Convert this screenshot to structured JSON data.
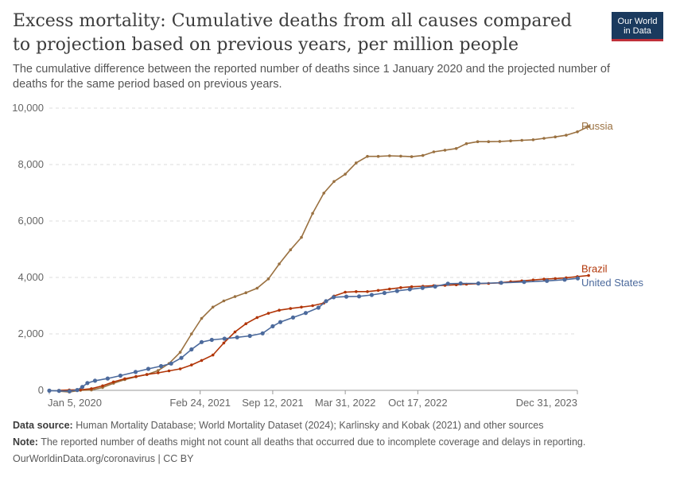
{
  "header": {
    "title": "Excess mortality: Cumulative deaths from all causes compared to projection based on previous years, per million people",
    "subtitle": "The cumulative difference between the reported number of deaths since 1 January 2020 and the projected number of deaths for the same period based on previous years.",
    "logo_line1": "Our World",
    "logo_line2": "in Data"
  },
  "footer": {
    "source_label": "Data source:",
    "source_text": " Human Mortality Database; World Mortality Dataset (2024); Karlinsky and Kobak (2021) and other sources",
    "note_label": "Note:",
    "note_text": " The reported number of deaths might not count all deaths that occurred due to incomplete coverage and delays in reporting.",
    "credit": "OurWorldinData.org/coronavirus | CC BY"
  },
  "colors": {
    "Russia": "#9a7141",
    "Brazil": "#b13507",
    "United States": "#4c6a9c",
    "grid": "#dddddd"
  },
  "chart_data": {
    "type": "line",
    "title": "Excess mortality: Cumulative deaths from all causes compared to projection based on previous years, per million people",
    "ylim": [
      0,
      10000
    ],
    "yticks": [
      0,
      2000,
      4000,
      6000,
      8000,
      10000
    ],
    "ytick_labels": [
      "0",
      "2,000",
      "4,000",
      "6,000",
      "8,000",
      "10,000"
    ],
    "xlim": [
      "2020-01-05",
      "2023-12-31"
    ],
    "xticks": [
      "2020-01-05",
      "2021-02-24",
      "2021-09-12",
      "2022-03-31",
      "2022-10-17",
      "2023-12-31"
    ],
    "xtick_labels": [
      "Jan 5, 2020",
      "Feb 24, 2021",
      "Sep 12, 2021",
      "Mar 31, 2022",
      "Oct 17, 2022",
      "Dec 31, 2023"
    ],
    "grid": true,
    "legend": "end-of-line labels",
    "series": [
      {
        "name": "Russia",
        "points": [
          [
            "2020-01-31",
            -30
          ],
          [
            "2020-02-29",
            -60
          ],
          [
            "2020-03-31",
            0
          ],
          [
            "2020-04-30",
            10
          ],
          [
            "2020-05-31",
            100
          ],
          [
            "2020-06-30",
            250
          ],
          [
            "2020-07-31",
            380
          ],
          [
            "2020-08-31",
            480
          ],
          [
            "2020-09-30",
            560
          ],
          [
            "2020-10-31",
            700
          ],
          [
            "2020-11-30",
            950
          ],
          [
            "2020-12-31",
            1350
          ],
          [
            "2021-01-31",
            2000
          ],
          [
            "2021-02-28",
            2550
          ],
          [
            "2021-03-31",
            2950
          ],
          [
            "2021-04-30",
            3170
          ],
          [
            "2021-05-31",
            3320
          ],
          [
            "2021-06-30",
            3460
          ],
          [
            "2021-07-31",
            3620
          ],
          [
            "2021-08-31",
            3950
          ],
          [
            "2021-09-30",
            4480
          ],
          [
            "2021-10-31",
            4980
          ],
          [
            "2021-11-30",
            5420
          ],
          [
            "2021-12-31",
            6270
          ],
          [
            "2022-01-31",
            6990
          ],
          [
            "2022-02-28",
            7400
          ],
          [
            "2022-03-31",
            7660
          ],
          [
            "2022-04-30",
            8060
          ],
          [
            "2022-05-31",
            8290
          ],
          [
            "2022-06-30",
            8290
          ],
          [
            "2022-07-31",
            8310
          ],
          [
            "2022-08-31",
            8300
          ],
          [
            "2022-09-30",
            8280
          ],
          [
            "2022-10-31",
            8320
          ],
          [
            "2022-11-30",
            8450
          ],
          [
            "2022-12-31",
            8510
          ],
          [
            "2023-01-31",
            8570
          ],
          [
            "2023-02-28",
            8740
          ],
          [
            "2023-03-31",
            8810
          ],
          [
            "2023-04-30",
            8810
          ],
          [
            "2023-05-31",
            8820
          ],
          [
            "2023-06-30",
            8840
          ],
          [
            "2023-07-31",
            8860
          ],
          [
            "2023-08-31",
            8880
          ],
          [
            "2023-09-30",
            8930
          ],
          [
            "2023-10-31",
            8980
          ],
          [
            "2023-11-30",
            9040
          ],
          [
            "2023-12-31",
            9160
          ],
          [
            "2024-01-31",
            9350
          ]
        ]
      },
      {
        "name": "Brazil",
        "points": [
          [
            "2020-01-31",
            0
          ],
          [
            "2020-02-29",
            10
          ],
          [
            "2020-03-31",
            20
          ],
          [
            "2020-04-30",
            60
          ],
          [
            "2020-05-31",
            160
          ],
          [
            "2020-06-30",
            300
          ],
          [
            "2020-07-31",
            410
          ],
          [
            "2020-08-31",
            490
          ],
          [
            "2020-09-30",
            560
          ],
          [
            "2020-10-31",
            620
          ],
          [
            "2020-11-30",
            690
          ],
          [
            "2020-12-31",
            760
          ],
          [
            "2021-01-31",
            900
          ],
          [
            "2021-02-28",
            1060
          ],
          [
            "2021-03-31",
            1250
          ],
          [
            "2021-04-30",
            1680
          ],
          [
            "2021-05-31",
            2070
          ],
          [
            "2021-06-30",
            2360
          ],
          [
            "2021-07-31",
            2580
          ],
          [
            "2021-08-31",
            2730
          ],
          [
            "2021-09-30",
            2840
          ],
          [
            "2021-10-31",
            2900
          ],
          [
            "2021-11-30",
            2950
          ],
          [
            "2021-12-31",
            3000
          ],
          [
            "2022-01-31",
            3090
          ],
          [
            "2022-02-28",
            3340
          ],
          [
            "2022-03-31",
            3480
          ],
          [
            "2022-04-30",
            3500
          ],
          [
            "2022-05-31",
            3500
          ],
          [
            "2022-06-30",
            3540
          ],
          [
            "2022-07-31",
            3590
          ],
          [
            "2022-08-31",
            3640
          ],
          [
            "2022-09-30",
            3670
          ],
          [
            "2022-10-31",
            3690
          ],
          [
            "2022-11-30",
            3710
          ],
          [
            "2022-12-31",
            3720
          ],
          [
            "2023-01-31",
            3740
          ],
          [
            "2023-02-28",
            3760
          ],
          [
            "2023-03-31",
            3780
          ],
          [
            "2023-04-30",
            3790
          ],
          [
            "2023-05-31",
            3810
          ],
          [
            "2023-06-30",
            3850
          ],
          [
            "2023-07-31",
            3880
          ],
          [
            "2023-08-31",
            3910
          ],
          [
            "2023-09-30",
            3940
          ],
          [
            "2023-10-31",
            3960
          ],
          [
            "2023-11-30",
            3990
          ],
          [
            "2023-12-31",
            4030
          ],
          [
            "2024-01-31",
            4070
          ]
        ]
      },
      {
        "name": "United States",
        "points": [
          [
            "2020-01-05",
            -10
          ],
          [
            "2020-02-01",
            -20
          ],
          [
            "2020-03-01",
            -30
          ],
          [
            "2020-03-22",
            10
          ],
          [
            "2020-04-05",
            120
          ],
          [
            "2020-04-19",
            260
          ],
          [
            "2020-05-10",
            340
          ],
          [
            "2020-06-14",
            420
          ],
          [
            "2020-07-19",
            520
          ],
          [
            "2020-08-30",
            650
          ],
          [
            "2020-10-04",
            760
          ],
          [
            "2020-11-08",
            860
          ],
          [
            "2020-12-06",
            950
          ],
          [
            "2021-01-03",
            1150
          ],
          [
            "2021-01-31",
            1450
          ],
          [
            "2021-02-28",
            1710
          ],
          [
            "2021-03-28",
            1790
          ],
          [
            "2021-05-02",
            1830
          ],
          [
            "2021-06-06",
            1880
          ],
          [
            "2021-07-11",
            1930
          ],
          [
            "2021-08-15",
            2020
          ],
          [
            "2021-09-12",
            2270
          ],
          [
            "2021-10-03",
            2420
          ],
          [
            "2021-11-07",
            2580
          ],
          [
            "2021-12-12",
            2740
          ],
          [
            "2022-01-16",
            2930
          ],
          [
            "2022-02-06",
            3160
          ],
          [
            "2022-02-27",
            3300
          ],
          [
            "2022-04-03",
            3320
          ],
          [
            "2022-05-08",
            3330
          ],
          [
            "2022-06-12",
            3380
          ],
          [
            "2022-07-17",
            3450
          ],
          [
            "2022-08-21",
            3520
          ],
          [
            "2022-09-25",
            3580
          ],
          [
            "2022-10-30",
            3630
          ],
          [
            "2022-12-04",
            3680
          ],
          [
            "2023-01-08",
            3780
          ],
          [
            "2023-02-12",
            3790
          ],
          [
            "2023-04-02",
            3790
          ],
          [
            "2023-06-04",
            3810
          ],
          [
            "2023-08-06",
            3840
          ],
          [
            "2023-10-08",
            3880
          ],
          [
            "2023-11-26",
            3920
          ],
          [
            "2024-01-01",
            3970
          ]
        ]
      }
    ]
  }
}
